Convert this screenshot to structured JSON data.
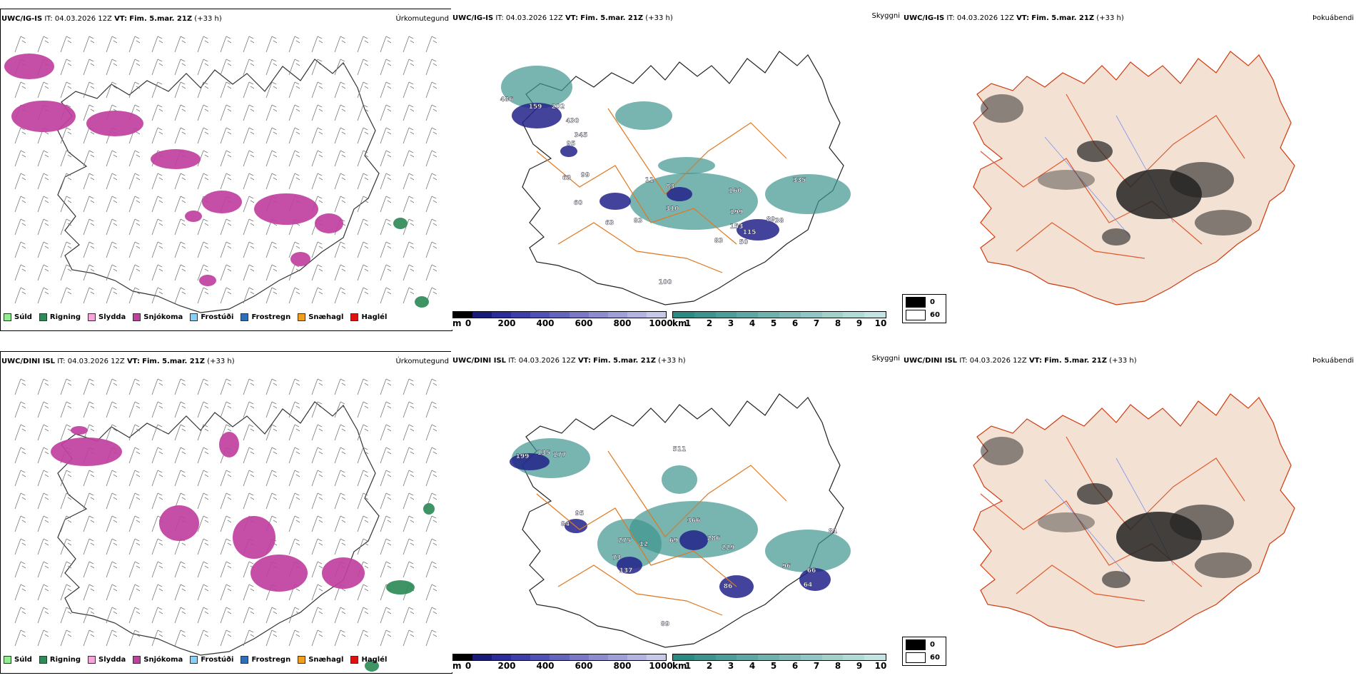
{
  "rows": [
    {
      "model": "UWC/IG-IS",
      "it_label": "IT:",
      "it_value": "04.03.2026 12Z",
      "vt_label": "VT:",
      "vt_value": "Fim. 5.mar. 21Z",
      "lead": "(+33 h)",
      "precip_title": "Úrkomutegund",
      "cloud_title": "Skyggni",
      "fog_title": "Þokuábendi",
      "cloud_labels": [
        "486",
        "159",
        "202",
        "430",
        "345",
        "95",
        "63",
        "99",
        "60",
        "63",
        "83",
        "11",
        "83",
        "310",
        "160",
        "335",
        "199",
        "153",
        "115",
        "89",
        "83",
        "50",
        "38",
        "100"
      ]
    },
    {
      "model": "UWC/DINI ISL",
      "it_label": "IT:",
      "it_value": "04.03.2026 12Z",
      "vt_label": "VT:",
      "vt_value": "Fim. 5.mar. 21Z",
      "lead": "(+33 h)",
      "precip_title": "Úrkomutegund",
      "cloud_title": "Skyggni",
      "fog_title": "Þokuábendi",
      "cloud_labels": [
        "199",
        "135",
        "177",
        "511",
        "95",
        "84",
        "275",
        "12",
        "69",
        "366",
        "286",
        "229",
        "73",
        "137",
        "86",
        "64",
        "96",
        "66",
        "81",
        "89"
      ]
    }
  ],
  "precip_legend": [
    {
      "label": "Súld",
      "color": "#90ee90"
    },
    {
      "label": "Rigning",
      "color": "#2e8b57"
    },
    {
      "label": "Slydda",
      "color": "#f4a6d8"
    },
    {
      "label": "Snjókoma",
      "color": "#c040a0"
    },
    {
      "label": "Frostúði",
      "color": "#87cefa"
    },
    {
      "label": "Frostregn",
      "color": "#2f6fb8"
    },
    {
      "label": "Snæhagl",
      "color": "#f0a020"
    },
    {
      "label": "Haglél",
      "color": "#e01010"
    }
  ],
  "cloudbase_scale": {
    "unit": "m",
    "ticks": [
      "0",
      "200",
      "400",
      "600",
      "800",
      "1000"
    ],
    "colors": [
      "#000000",
      "#1a1a7a",
      "#2b2b9b",
      "#3e3eaa",
      "#5050b5",
      "#6464bd",
      "#7878c6",
      "#8c8ccf",
      "#a0a0d8",
      "#b4b4e0",
      "#c8c8e8"
    ]
  },
  "visibility_scale": {
    "unit": "km",
    "ticks": [
      "1",
      "2",
      "3",
      "4",
      "5",
      "6",
      "7",
      "8",
      "9",
      "10"
    ],
    "colors": [
      "#2a8a84",
      "#3b948f",
      "#4c9e99",
      "#5da8a4",
      "#6eb2ae",
      "#7fbcb8",
      "#90c6c3",
      "#a1d0cd",
      "#b2dad8",
      "#c3e4e2"
    ]
  },
  "fog_legend": [
    {
      "label": "0",
      "color": "#000000"
    },
    {
      "label": "60",
      "color": "#ffffff"
    }
  ]
}
